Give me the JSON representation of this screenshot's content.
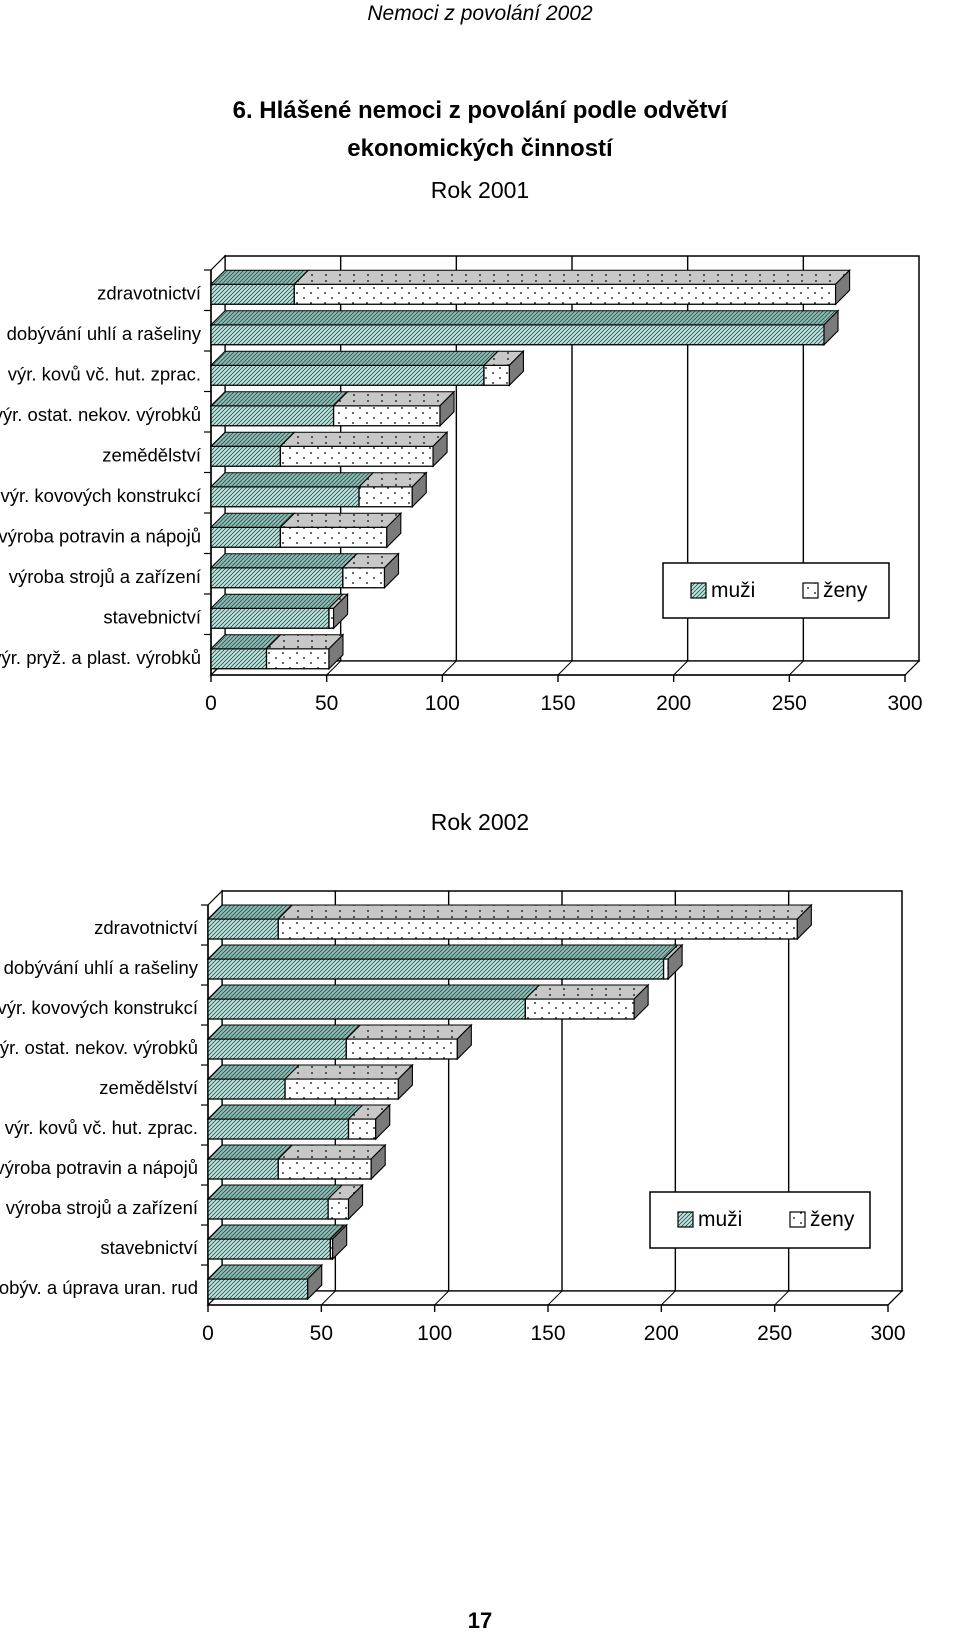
{
  "header": "Nemoci z povolání 2002",
  "title_line1": "6. Hlášené nemoci z povolání podle odvětví",
  "title_line2": "ekonomických činností",
  "page_number": "17",
  "colors": {
    "men_fill": "#bfe6e0",
    "men_top": "#8fbdb6",
    "women_fill": "#ffffff",
    "women_top": "#c7c7c7",
    "side": "#7a7a7a"
  },
  "chart_data": [
    {
      "type": "bar",
      "orientation": "horizontal",
      "stacked": true,
      "title": "Rok 2001",
      "categories": [
        "zdravotnictví",
        "dobývání uhlí a rašeliny",
        "výr. kovů vč. hut. zprac.",
        "výr. ostat. nekov. výrobků",
        "zemědělství",
        "výr. kovových konstrukcí",
        "výroba potravin a nápojů",
        "výroba strojů a zařízení",
        "stavebnictví",
        "výr. pryž. a plast. výrobků"
      ],
      "series": [
        {
          "name": "muži",
          "values": [
            36,
            265,
            118,
            53,
            30,
            64,
            30,
            57,
            51,
            24
          ]
        },
        {
          "name": "ženy",
          "values": [
            234,
            0,
            11,
            46,
            66,
            23,
            46,
            18,
            2,
            27
          ]
        }
      ],
      "xlim": [
        0,
        300
      ],
      "xticks": [
        "0",
        "50",
        "100",
        "150",
        "200",
        "250",
        "300"
      ],
      "legend": "right"
    },
    {
      "type": "bar",
      "orientation": "horizontal",
      "stacked": true,
      "title": "Rok 2002",
      "categories": [
        "zdravotnictví",
        "dobývání uhlí a rašeliny",
        "výr. kovových konstrukcí",
        "výr. ostat. nekov. výrobků",
        "zemědělství",
        "výr. kovů vč. hut. zprac.",
        "výroba potravin a nápojů",
        "výroba strojů a zařízení",
        "stavebnictví",
        "dobýv. a úprava uran. rud"
      ],
      "series": [
        {
          "name": "muži",
          "values": [
            31,
            201,
            140,
            61,
            34,
            62,
            31,
            53,
            54,
            44
          ]
        },
        {
          "name": "ženy",
          "values": [
            229,
            2,
            48,
            49,
            50,
            12,
            41,
            9,
            1,
            0
          ]
        }
      ],
      "xlim": [
        0,
        300
      ],
      "xticks": [
        "0",
        "50",
        "100",
        "150",
        "200",
        "250",
        "300"
      ],
      "legend": "right"
    }
  ]
}
